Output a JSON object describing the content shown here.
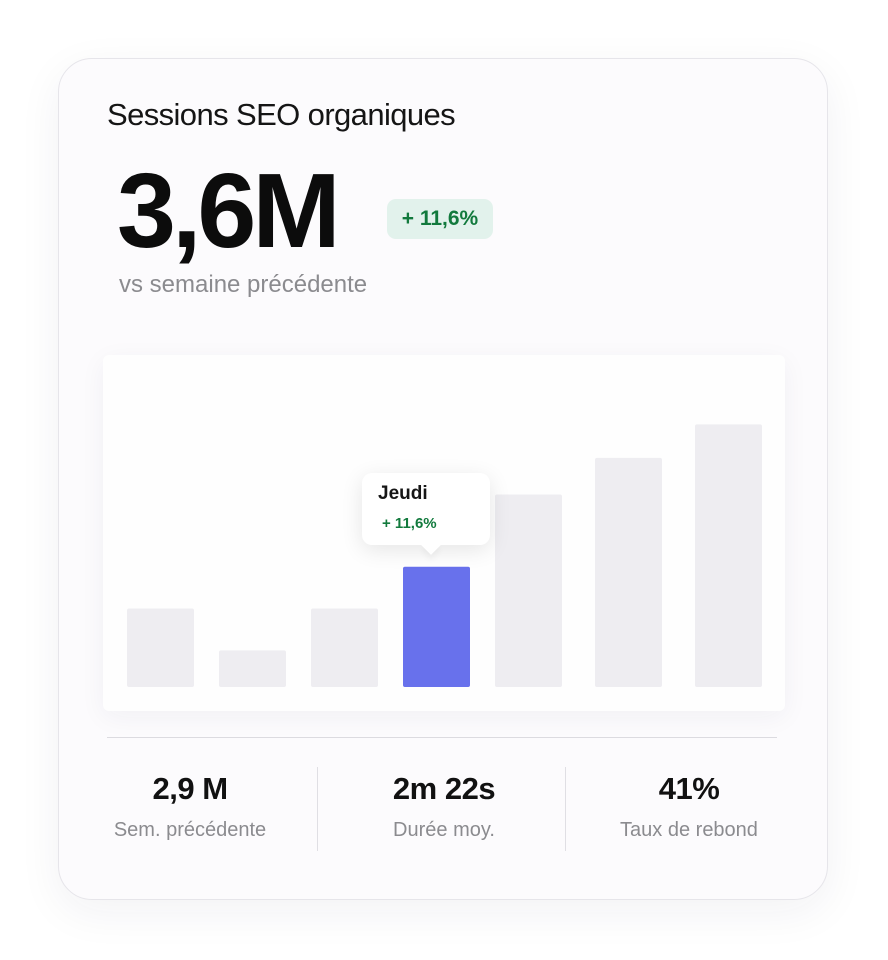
{
  "card": {
    "title": "Sessions SEO organiques",
    "value": "3,6M",
    "delta_badge": "+ 11,6%",
    "comparison": "vs semaine précédente"
  },
  "colors": {
    "highlight_bar": "#6871ec",
    "bar": "#eeedf1",
    "positive": "#127a3d",
    "badge_bg": "#e2f2ec"
  },
  "chart_data": {
    "type": "bar",
    "categories": [
      "",
      "",
      "",
      "Jeudi",
      "",
      "",
      ""
    ],
    "values": [
      75,
      35,
      75,
      115,
      184,
      219,
      251
    ],
    "highlighted_index": 3,
    "ylim": [
      0,
      260
    ],
    "grid": false,
    "title": "",
    "xlabel": "",
    "ylabel": ""
  },
  "tooltip": {
    "day": "Jeudi",
    "delta": "+ 11,6%"
  },
  "stats": [
    {
      "value": "2,9 M",
      "label": "Sem. précédente"
    },
    {
      "value": "2m 22s",
      "label": "Durée moy."
    },
    {
      "value": "41%",
      "label": "Taux de rebond"
    }
  ]
}
